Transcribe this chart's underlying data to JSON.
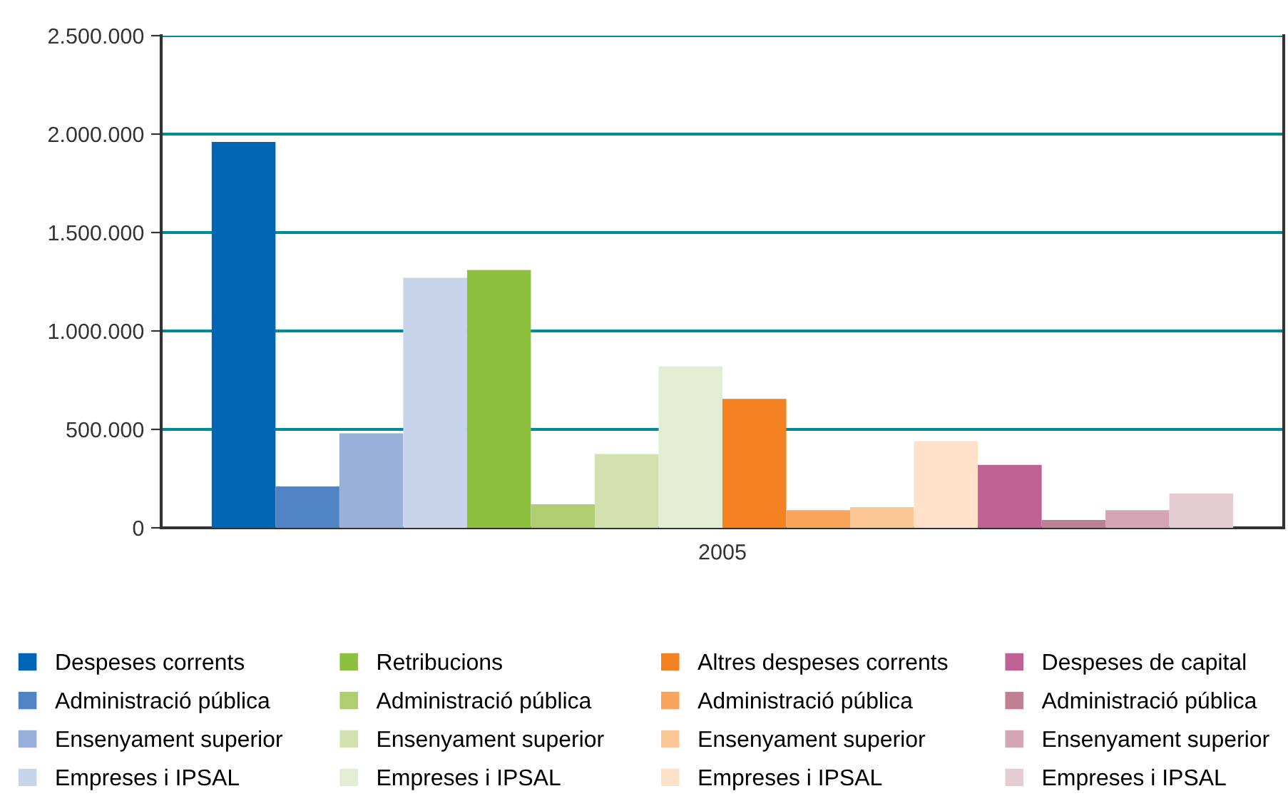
{
  "chart_data": {
    "type": "bar",
    "categories": [
      "2005"
    ],
    "series": [
      {
        "name": "Despeses corrents",
        "color": "#0066b3",
        "values": [
          1960000
        ]
      },
      {
        "name": "Administració pública",
        "color": "#5083c4",
        "values": [
          210000
        ]
      },
      {
        "name": "Ensenyament superior",
        "color": "#98b0da",
        "values": [
          480000
        ]
      },
      {
        "name": "Empreses i IPSAL",
        "color": "#c8d4ea",
        "values": [
          1270000
        ]
      },
      {
        "name": "Retribucions",
        "color": "#8dc03f",
        "values": [
          1310000
        ]
      },
      {
        "name": "Administració pública",
        "color": "#afce72",
        "values": [
          120000
        ]
      },
      {
        "name": "Ensenyament superior",
        "color": "#d2e1ae",
        "values": [
          375000
        ]
      },
      {
        "name": "Empreses i IPSAL",
        "color": "#e3edd4",
        "values": [
          820000
        ]
      },
      {
        "name": "Altres despeses corrents",
        "color": "#f58220",
        "values": [
          655000
        ]
      },
      {
        "name": "Administració pública",
        "color": "#f9a45c",
        "values": [
          90000
        ]
      },
      {
        "name": "Ensenyament superior",
        "color": "#fdc795",
        "values": [
          105000
        ]
      },
      {
        "name": "Empreses i IPSAL",
        "color": "#fee1c8",
        "values": [
          440000
        ]
      },
      {
        "name": "Despeses de capital",
        "color": "#c06194",
        "values": [
          320000
        ]
      },
      {
        "name": "Administració pública",
        "color": "#c08093",
        "values": [
          40000
        ]
      },
      {
        "name": "Ensenyament superior",
        "color": "#d4a5b4",
        "values": [
          90000
        ]
      },
      {
        "name": "Empreses i IPSAL",
        "color": "#e4ccd3",
        "values": [
          175000
        ]
      }
    ],
    "ylim": [
      0,
      2500000
    ],
    "yticks": [
      {
        "value": 0,
        "label": "0"
      },
      {
        "value": 500000,
        "label": "500.000"
      },
      {
        "value": 1000000,
        "label": "1.000.000"
      },
      {
        "value": 1500000,
        "label": "1.500.000"
      },
      {
        "value": 2000000,
        "label": "2.000.000"
      },
      {
        "value": 2500000,
        "label": "2.500.000"
      }
    ],
    "grid": "y",
    "legend": "bottom"
  }
}
